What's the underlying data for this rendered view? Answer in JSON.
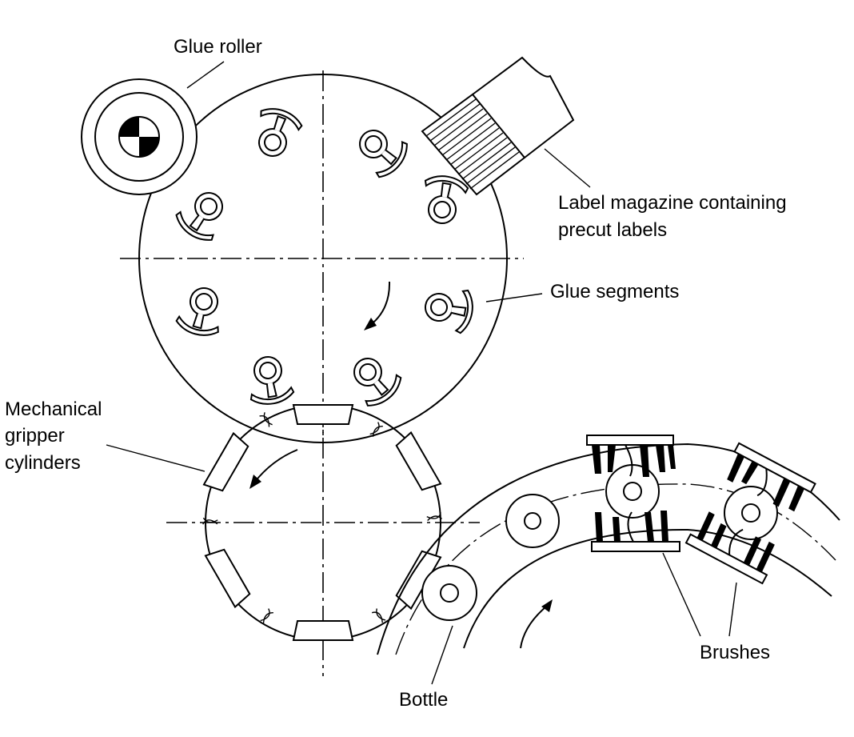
{
  "labels": {
    "glue_roller": "Glue roller",
    "label_magazine_line1": "Label magazine containing",
    "label_magazine_line2": "precut labels",
    "glue_segments": "Glue segments",
    "gripper_line1": "Mechanical",
    "gripper_line2": "gripper",
    "gripper_line3": "cylinders",
    "brushes": "Brushes",
    "bottle": "Bottle"
  }
}
